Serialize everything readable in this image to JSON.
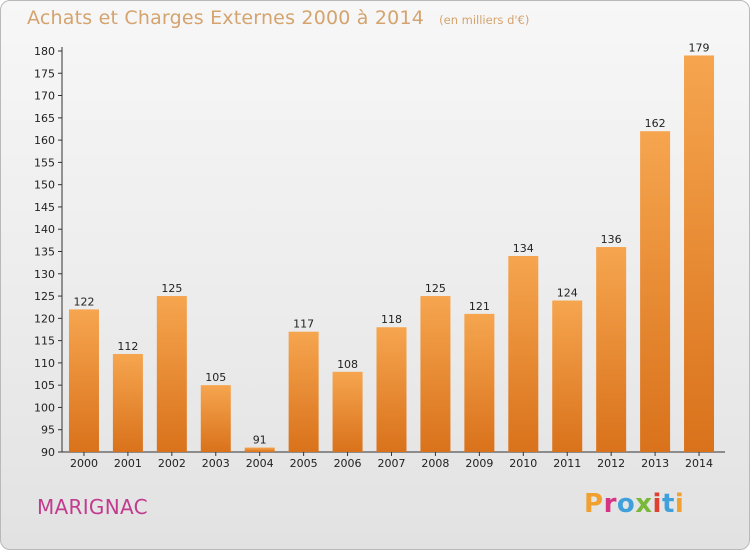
{
  "header": {
    "title": "Achats et Charges Externes 2000 à 2014",
    "subtitle": "(en milliers d'€)"
  },
  "footer": {
    "commune": "MARIGNAC",
    "logo_text": "Proxiti"
  },
  "colors": {
    "bar_top": "#f6a54f",
    "bar_bottom": "#d9721b",
    "title": "#d4a36e",
    "commune": "#c23b8e",
    "logo_letters": [
      "#f0a030",
      "#d63384",
      "#3fa0dc",
      "#7ab83a",
      "#e0402f",
      "#3fa0dc",
      "#f0a030"
    ]
  },
  "chart_data": {
    "type": "bar",
    "categories": [
      "2000",
      "2001",
      "2002",
      "2003",
      "2004",
      "2005",
      "2006",
      "2007",
      "2008",
      "2009",
      "2010",
      "2011",
      "2012",
      "2013",
      "2014"
    ],
    "values": [
      122,
      112,
      125,
      105,
      91,
      117,
      108,
      118,
      125,
      121,
      134,
      124,
      136,
      162,
      179
    ],
    "title": "Achats et Charges Externes 2000 à 2014",
    "subtitle": "(en milliers d'€)",
    "xlabel": "",
    "ylabel": "",
    "ylim": [
      90,
      180
    ],
    "yticks": [
      90,
      95,
      100,
      105,
      110,
      115,
      120,
      125,
      130,
      135,
      140,
      145,
      150,
      155,
      160,
      165,
      170,
      175,
      180
    ],
    "grid": false,
    "legend": "none"
  }
}
